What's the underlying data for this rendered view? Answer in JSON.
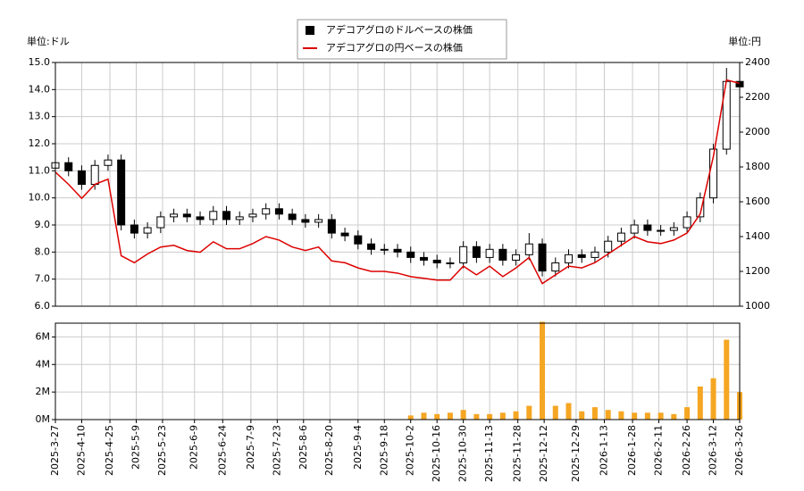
{
  "chart_data": [
    {
      "type": "candlestick",
      "ylabel": "単位:ドル",
      "y2label": "単位:円",
      "x": [
        "2025-3-27",
        "2025-4-3",
        "2025-4-10",
        "2025-4-17",
        "2025-4-24",
        "2025-5-1",
        "2025-5-8",
        "2025-5-15",
        "2025-5-22",
        "2025-5-29",
        "2025-6-5",
        "2025-6-12",
        "2025-6-19",
        "2025-6-26",
        "2025-7-3",
        "2025-7-10",
        "2025-7-17",
        "2025-7-24",
        "2025-7-31",
        "2025-8-7",
        "2025-8-14",
        "2025-8-21",
        "2025-8-28",
        "2025-9-4",
        "2025-9-11",
        "2025-9-18",
        "2025-9-25",
        "2025-10-2",
        "2025-10-9",
        "2025-10-16",
        "2025-10-23",
        "2025-10-30",
        "2025-11-6",
        "2025-11-13",
        "2025-11-20",
        "2025-11-27",
        "2025-12-4",
        "2025-12-11",
        "2025-12-18",
        "2025-12-25",
        "2026-1-1",
        "2026-1-8",
        "2026-1-15",
        "2026-1-22",
        "2026-1-29",
        "2026-2-5",
        "2026-2-12",
        "2026-2-19",
        "2026-2-26",
        "2026-3-5",
        "2026-3-12",
        "2026-3-19",
        "2026-3-26"
      ],
      "xlim": [
        "2025-3-27",
        "2026-3-26"
      ],
      "xticks": [
        "2025-3-27",
        "2025-4-10",
        "2025-4-25",
        "2025-5-9",
        "2025-5-23",
        "2025-6-9",
        "2025-6-24",
        "2025-7-9",
        "2025-7-23",
        "2025-8-6",
        "2025-8-20",
        "2025-9-4",
        "2025-9-18",
        "2025-10-2",
        "2025-10-16",
        "2025-10-30",
        "2025-11-13",
        "2025-11-28",
        "2025-12-12",
        "2025-12-29",
        "2026-1-13",
        "2026-1-28",
        "2026-2-11",
        "2026-2-26",
        "2026-3-12",
        "2026-3-26"
      ],
      "ylim": [
        6,
        15
      ],
      "yticks": [
        {
          "value": 6,
          "label": "6.0"
        },
        {
          "value": 7,
          "label": "7.0"
        },
        {
          "value": 8,
          "label": "8.0"
        },
        {
          "value": 9,
          "label": "9.0"
        },
        {
          "value": 10,
          "label": "10.0"
        },
        {
          "value": 11,
          "label": "11.0"
        },
        {
          "value": 12,
          "label": "12.0"
        },
        {
          "value": 13,
          "label": "13.0"
        },
        {
          "value": 14,
          "label": "14.0"
        },
        {
          "value": 15,
          "label": "15.0"
        }
      ],
      "y2lim": [
        1000,
        2400
      ],
      "y2ticks": [
        1000,
        1200,
        1400,
        1600,
        1800,
        2000,
        2200,
        2400
      ],
      "grid": true,
      "series": [
        {
          "name": "アデコアグロのドルベースの株価",
          "color": "#000000",
          "open": [
            11.1,
            11.3,
            11.0,
            10.5,
            11.2,
            11.4,
            9.0,
            8.7,
            8.9,
            9.3,
            9.4,
            9.3,
            9.2,
            9.5,
            9.2,
            9.3,
            9.4,
            9.6,
            9.4,
            9.2,
            9.1,
            9.2,
            8.7,
            8.6,
            8.3,
            8.1,
            8.1,
            8.0,
            7.8,
            7.7,
            7.6,
            7.6,
            8.2,
            7.8,
            8.1,
            7.7,
            7.9,
            8.3,
            7.3,
            7.6,
            7.9,
            7.8,
            8.0,
            8.4,
            8.7,
            9.0,
            8.8,
            8.8,
            8.9,
            9.3,
            10.0,
            11.8,
            14.3
          ],
          "high": [
            11.5,
            11.5,
            11.2,
            11.4,
            11.6,
            11.6,
            9.2,
            9.1,
            9.5,
            9.6,
            9.6,
            9.5,
            9.7,
            9.7,
            9.5,
            9.6,
            9.8,
            9.8,
            9.6,
            9.4,
            9.4,
            9.4,
            8.9,
            8.8,
            8.5,
            8.3,
            8.3,
            8.2,
            8.0,
            7.9,
            7.8,
            8.4,
            8.4,
            8.3,
            8.3,
            8.1,
            8.7,
            8.5,
            7.8,
            8.1,
            8.1,
            8.2,
            8.6,
            8.9,
            9.2,
            9.2,
            9.0,
            9.1,
            9.5,
            10.2,
            12.0,
            14.8,
            14.9
          ],
          "low": [
            10.9,
            10.8,
            10.3,
            10.3,
            11.0,
            8.8,
            8.5,
            8.5,
            8.7,
            9.1,
            9.1,
            9.0,
            9.0,
            9.0,
            9.0,
            9.1,
            9.2,
            9.2,
            9.0,
            8.9,
            8.9,
            8.5,
            8.4,
            8.1,
            7.9,
            7.9,
            7.8,
            7.6,
            7.5,
            7.4,
            7.4,
            7.4,
            7.6,
            7.6,
            7.5,
            7.5,
            7.7,
            7.1,
            7.1,
            7.4,
            7.6,
            7.6,
            7.8,
            8.2,
            8.5,
            8.6,
            8.6,
            8.6,
            8.7,
            9.1,
            9.8,
            11.6,
            13.7
          ],
          "close": [
            11.3,
            11.0,
            10.5,
            11.2,
            11.4,
            9.0,
            8.7,
            8.9,
            9.3,
            9.4,
            9.3,
            9.2,
            9.5,
            9.2,
            9.3,
            9.4,
            9.6,
            9.4,
            9.2,
            9.1,
            9.2,
            8.7,
            8.6,
            8.3,
            8.1,
            8.1,
            8.0,
            7.8,
            7.7,
            7.6,
            7.6,
            8.2,
            7.8,
            8.1,
            7.7,
            7.9,
            8.3,
            7.3,
            7.6,
            7.9,
            7.8,
            8.0,
            8.4,
            8.7,
            9.0,
            8.8,
            8.8,
            8.9,
            9.3,
            10.0,
            11.8,
            14.3,
            14.1
          ]
        },
        {
          "name": "アデコアグロの円ベースの株価",
          "color": "#dd0000",
          "axis": "y2",
          "values": [
            1770,
            1700,
            1620,
            1700,
            1730,
            1290,
            1250,
            1300,
            1340,
            1350,
            1320,
            1310,
            1370,
            1330,
            1330,
            1360,
            1400,
            1380,
            1340,
            1320,
            1340,
            1260,
            1250,
            1220,
            1200,
            1200,
            1190,
            1170,
            1160,
            1150,
            1150,
            1230,
            1180,
            1230,
            1170,
            1220,
            1280,
            1130,
            1180,
            1230,
            1220,
            1250,
            1300,
            1350,
            1400,
            1370,
            1360,
            1380,
            1420,
            1530,
            1860,
            2300,
            2280
          ]
        }
      ]
    },
    {
      "type": "bar",
      "x": [
        "2025-3-27",
        "2025-4-3",
        "2025-4-10",
        "2025-4-17",
        "2025-4-24",
        "2025-5-1",
        "2025-5-8",
        "2025-5-15",
        "2025-5-22",
        "2025-5-29",
        "2025-6-5",
        "2025-6-12",
        "2025-6-19",
        "2025-6-26",
        "2025-7-3",
        "2025-7-10",
        "2025-7-17",
        "2025-7-24",
        "2025-7-31",
        "2025-8-7",
        "2025-8-14",
        "2025-8-21",
        "2025-8-28",
        "2025-9-4",
        "2025-9-11",
        "2025-9-18",
        "2025-9-25",
        "2025-10-2",
        "2025-10-9",
        "2025-10-16",
        "2025-10-23",
        "2025-10-30",
        "2025-11-6",
        "2025-11-13",
        "2025-11-20",
        "2025-11-27",
        "2025-12-4",
        "2025-12-11",
        "2025-12-18",
        "2025-12-25",
        "2026-1-1",
        "2026-1-8",
        "2026-1-15",
        "2026-1-22",
        "2026-1-29",
        "2026-2-5",
        "2026-2-12",
        "2026-2-19",
        "2026-2-26",
        "2026-3-5",
        "2026-3-12",
        "2026-3-19",
        "2026-3-26"
      ],
      "xlim": [
        "2025-3-27",
        "2026-3-26"
      ],
      "xticks": [
        "2025-3-27",
        "2025-4-10",
        "2025-4-25",
        "2025-5-9",
        "2025-5-23",
        "2025-6-9",
        "2025-6-24",
        "2025-7-9",
        "2025-7-23",
        "2025-8-6",
        "2025-8-20",
        "2025-9-4",
        "2025-9-18",
        "2025-10-2",
        "2025-10-16",
        "2025-10-30",
        "2025-11-13",
        "2025-11-28",
        "2025-12-12",
        "2025-12-29",
        "2026-1-13",
        "2026-1-28",
        "2026-2-11",
        "2026-2-26",
        "2026-3-12",
        "2026-3-26"
      ],
      "values": [
        0,
        0,
        0,
        0,
        0,
        0,
        0,
        0,
        0,
        0,
        0,
        0,
        0,
        0,
        0,
        0,
        0,
        0,
        0,
        0,
        0,
        0,
        0,
        0,
        0,
        0,
        0,
        300000,
        500000,
        400000,
        500000,
        700000,
        400000,
        400000,
        500000,
        600000,
        1000000,
        7100000,
        1000000,
        1200000,
        600000,
        900000,
        700000,
        600000,
        500000,
        500000,
        500000,
        400000,
        900000,
        2400000,
        3000000,
        5800000,
        2000000
      ],
      "color": "#f5a623",
      "ylim": [
        0,
        7000000
      ],
      "yticks": [
        {
          "value": 0,
          "label": "0M"
        },
        {
          "value": 2000000,
          "label": "2M"
        },
        {
          "value": 4000000,
          "label": "4M"
        },
        {
          "value": 6000000,
          "label": "6M"
        }
      ],
      "grid": true
    }
  ]
}
